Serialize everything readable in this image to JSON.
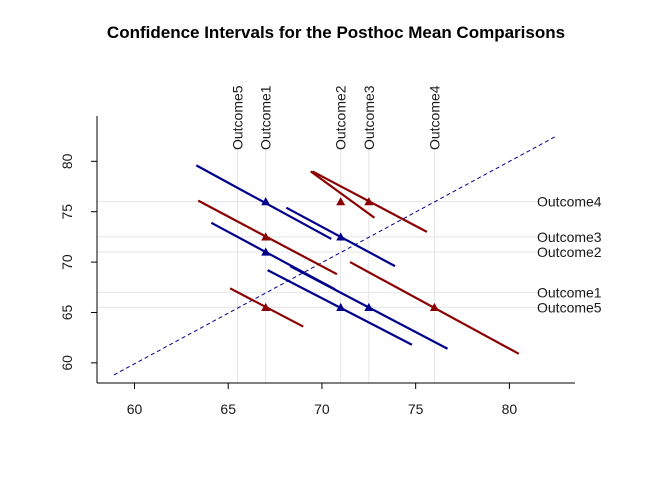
{
  "chart_data": {
    "type": "scatter",
    "title": "Confidence Intervals for the Posthoc Mean Comparisons",
    "xlabel": "",
    "ylabel": "",
    "xlim": [
      58,
      83.5
    ],
    "ylim": [
      58,
      84.5
    ],
    "x_ticks": [
      60,
      65,
      70,
      75,
      80
    ],
    "y_ticks": [
      60,
      65,
      70,
      75,
      80
    ],
    "grid": true,
    "outcomes": [
      {
        "name": "Outcome1",
        "mean": 67.0
      },
      {
        "name": "Outcome2",
        "mean": 71.0
      },
      {
        "name": "Outcome3",
        "mean": 72.5
      },
      {
        "name": "Outcome4",
        "mean": 76.0
      },
      {
        "name": "Outcome5",
        "mean": 65.5
      }
    ],
    "identity_line": {
      "from": [
        58.9,
        58.8
      ],
      "to": [
        82.5,
        82.5
      ],
      "color": "#00008b"
    },
    "comparisons": [
      {
        "x": 67.0,
        "y": 76.0,
        "x1": 63.3,
        "y1": 79.6,
        "x2": 70.5,
        "y2": 72.3,
        "color": "#00008b"
      },
      {
        "x": 71.0,
        "y": 72.5,
        "x1": 68.1,
        "y1": 75.4,
        "x2": 73.9,
        "y2": 69.6,
        "color": "#00008b"
      },
      {
        "x": 67.0,
        "y": 71.0,
        "x1": 64.1,
        "y1": 73.9,
        "x2": 70.7,
        "y2": 67.3,
        "color": "#00008b"
      },
      {
        "x": 71.0,
        "y": 65.5,
        "x1": 67.1,
        "y1": 69.2,
        "x2": 74.8,
        "y2": 61.8,
        "color": "#00008b"
      },
      {
        "x": 72.5,
        "y": 65.5,
        "x1": 68.3,
        "y1": 69.6,
        "x2": 76.7,
        "y2": 61.4,
        "color": "#00008b"
      },
      {
        "x": 71.0,
        "y": 76.0,
        "x1": 69.4,
        "y1": 79.0,
        "x2": 72.8,
        "y2": 74.4,
        "color": "#8b0000"
      },
      {
        "x": 72.5,
        "y": 76.0,
        "x1": 69.5,
        "y1": 79.0,
        "x2": 75.6,
        "y2": 73.0,
        "color": "#8b0000"
      },
      {
        "x": 67.0,
        "y": 72.5,
        "x1": 63.4,
        "y1": 76.1,
        "x2": 70.8,
        "y2": 68.8,
        "color": "#8b0000"
      },
      {
        "x": 76.0,
        "y": 65.5,
        "x1": 71.5,
        "y1": 70.0,
        "x2": 80.5,
        "y2": 60.9,
        "color": "#8b0000"
      },
      {
        "x": 67.0,
        "y": 65.5,
        "x1": 65.1,
        "y1": 67.4,
        "x2": 69.0,
        "y2": 63.6,
        "color": "#8b0000"
      }
    ]
  }
}
